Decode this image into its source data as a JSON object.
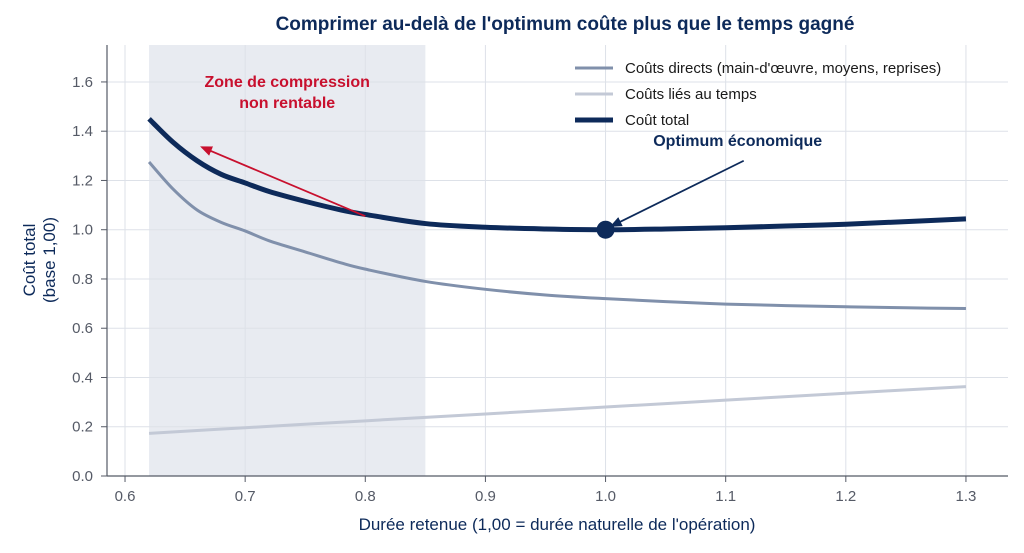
{
  "title": "Comprimer au-delà de l'optimum coûte plus que le temps gagné",
  "chart_data": {
    "type": "line",
    "title": "Comprimer au-delà de l'optimum coûte plus que le temps gagné",
    "xlabel": "Durée retenue  (1,00 = durée naturelle de l'opération)",
    "ylabel": [
      "Coût total",
      "(base 1,00)"
    ],
    "xlim": [
      0.585,
      1.335
    ],
    "ylim": [
      0.0,
      1.75
    ],
    "xticks": [
      0.6,
      0.7,
      0.8,
      0.9,
      1.0,
      1.1,
      1.2,
      1.3
    ],
    "xtick_labels": [
      "0.6",
      "0.7",
      "0.8",
      "0.9",
      "1.0",
      "1.1",
      "1.2",
      "1.3"
    ],
    "yticks": [
      0.0,
      0.2,
      0.4,
      0.6,
      0.8,
      1.0,
      1.2,
      1.4,
      1.6
    ],
    "ytick_labels": [
      "0.0",
      "0.2",
      "0.4",
      "0.6",
      "0.8",
      "1.0",
      "1.2",
      "1.4",
      "1.6"
    ],
    "grid": true,
    "legend_position": "top-right",
    "shaded_region": {
      "x_start": 0.62,
      "x_end": 0.85,
      "color": "#e8ebf1"
    },
    "series": [
      {
        "name": "Coûts directs (main-d'œuvre, moyens, reprises)",
        "color": "#8090ab",
        "width": 3,
        "x": [
          0.62,
          0.64,
          0.66,
          0.68,
          0.7,
          0.72,
          0.75,
          0.78,
          0.8,
          0.85,
          0.9,
          0.95,
          1.0,
          1.05,
          1.1,
          1.15,
          1.2,
          1.25,
          1.3
        ],
        "y": [
          1.275,
          1.165,
          1.08,
          1.03,
          0.995,
          0.955,
          0.91,
          0.865,
          0.84,
          0.79,
          0.758,
          0.735,
          0.72,
          0.708,
          0.698,
          0.692,
          0.687,
          0.683,
          0.68
        ]
      },
      {
        "name": "Coûts liés au temps",
        "color": "#c3c9d6",
        "width": 3,
        "x": [
          0.62,
          0.7,
          0.8,
          0.85,
          0.9,
          1.0,
          1.1,
          1.2,
          1.3
        ],
        "y": [
          0.173,
          0.196,
          0.224,
          0.238,
          0.252,
          0.28,
          0.308,
          0.336,
          0.363
        ]
      },
      {
        "name": "Coût total",
        "color": "#0d2a5a",
        "width": 5,
        "x": [
          0.62,
          0.64,
          0.66,
          0.68,
          0.7,
          0.72,
          0.75,
          0.78,
          0.8,
          0.85,
          0.9,
          0.95,
          1.0,
          1.05,
          1.1,
          1.15,
          1.2,
          1.25,
          1.3
        ],
        "y": [
          1.45,
          1.355,
          1.28,
          1.225,
          1.19,
          1.155,
          1.115,
          1.08,
          1.062,
          1.025,
          1.01,
          1.003,
          1.0,
          1.003,
          1.008,
          1.015,
          1.022,
          1.033,
          1.044
        ]
      }
    ],
    "optimum_point": {
      "x": 1.0,
      "y": 1.0,
      "color": "#0d2a5a"
    },
    "annotations": [
      {
        "text": [
          "Zone de compression",
          "non rentable"
        ],
        "color": "#c8102e",
        "text_at": [
          0.735,
          1.58
        ],
        "arrow_from": [
          0.8,
          1.055
        ],
        "arrow_to": [
          0.664,
          1.335
        ]
      },
      {
        "text": [
          "Optimum économique"
        ],
        "color": "#0d2a5a",
        "text_at": [
          1.11,
          1.34
        ],
        "arrow_from": [
          1.115,
          1.28
        ],
        "arrow_to": [
          1.005,
          1.015
        ]
      }
    ]
  },
  "style": {
    "text_color": "#0d2a5a",
    "grid_color": "#dde1e8",
    "axis_color": "#555a66"
  }
}
